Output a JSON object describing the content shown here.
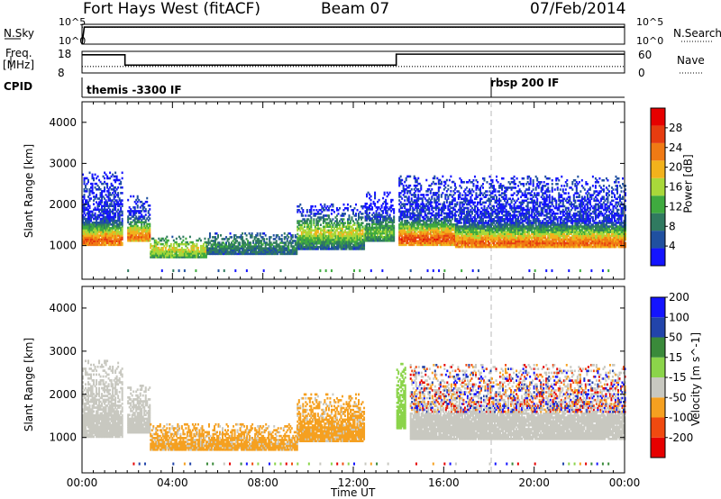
{
  "header": {
    "station": "Fort Hays West (fitACF)",
    "beam": "Beam 07",
    "date": "07/Feb/2014"
  },
  "top_panels": {
    "nsky_label": "N.Sky",
    "nsky_ticks": [
      "10^5",
      "10^0"
    ],
    "nsearch_label": "N.Search",
    "nsearch_ticks": [
      "10^5",
      "10^0"
    ],
    "freq_label": "Freq.",
    "freq_unit": "[MHz]",
    "freq_ticks": [
      "18",
      "8"
    ],
    "nave_label": "Nave",
    "nave_ticks": [
      "60",
      "0"
    ],
    "cpid_label": "CPID",
    "cpid_segments": [
      {
        "start": "00:00",
        "label": "themis -3300 IF"
      },
      {
        "start": "18:05",
        "label": "rbsp 200 IF"
      }
    ]
  },
  "chart_data": [
    {
      "type": "line",
      "name": "nsky-nsearch",
      "x_range_hours": [
        0,
        24
      ],
      "ylim_log": [
        0,
        5
      ],
      "series": [
        {
          "key": "nsky",
          "x": [
            0,
            0.1,
            24
          ],
          "values": [
            0,
            4.3,
            4.3
          ]
        },
        {
          "key": "nsearch",
          "x": [
            0,
            24
          ],
          "values": [
            4.3,
            4.3
          ]
        }
      ]
    },
    {
      "type": "line",
      "name": "freq-nave",
      "x_range_hours": [
        0,
        24
      ],
      "ylim": [
        8,
        18
      ],
      "ylim_right": [
        0,
        60
      ],
      "series": [
        {
          "key": "freq",
          "x": [
            0,
            1.9,
            1.9,
            13.9,
            13.9,
            24
          ],
          "values": [
            16.4,
            16.4,
            11.6,
            11.6,
            16.7,
            16.7
          ]
        },
        {
          "key": "nave",
          "x": [
            0,
            24
          ],
          "values": [
            18,
            18
          ]
        }
      ]
    },
    {
      "type": "heatmap",
      "name": "power",
      "xlabel": "",
      "ylabel": "Slant Range [km]",
      "x_ticks": [
        "00:00",
        "04:00",
        "08:00",
        "12:00",
        "16:00",
        "20:00",
        "00:00"
      ],
      "x_tick_hours": [
        0,
        4,
        8,
        12,
        16,
        20,
        24
      ],
      "y_ticks": [
        1000,
        2000,
        3000,
        4000
      ],
      "ylim": [
        180,
        4500
      ],
      "colorbar": {
        "label": "Power [dB]",
        "ticks": [
          4,
          8,
          12,
          16,
          20,
          24,
          28
        ],
        "colors": [
          "#1414ff",
          "#2050a0",
          "#307a60",
          "#3faa3f",
          "#a9d83a",
          "#f2b21c",
          "#f07a14",
          "#e63c10",
          "#e60000"
        ],
        "range": [
          0,
          32
        ]
      },
      "bands": [
        {
          "t0": 0.0,
          "t1": 1.8,
          "r_low": 1000,
          "r_high": 2800,
          "core": 1100,
          "level": 26
        },
        {
          "t0": 2.0,
          "t1": 3.0,
          "r_low": 1100,
          "r_high": 2200,
          "core": 1200,
          "level": 24
        },
        {
          "t0": 3.0,
          "t1": 5.5,
          "r_low": 700,
          "r_high": 1200,
          "core": 900,
          "level": 18
        },
        {
          "t0": 5.5,
          "t1": 9.5,
          "r_low": 780,
          "r_high": 1300,
          "core": 1000,
          "level": 10
        },
        {
          "t0": 9.5,
          "t1": 12.5,
          "r_low": 900,
          "r_high": 2000,
          "core": 1300,
          "level": 18
        },
        {
          "t0": 12.5,
          "t1": 13.8,
          "r_low": 1100,
          "r_high": 2300,
          "core": 1300,
          "level": 14
        },
        {
          "t0": 14.0,
          "t1": 16.5,
          "r_low": 1000,
          "r_high": 2700,
          "core": 1150,
          "level": 27
        },
        {
          "t0": 16.5,
          "t1": 24.0,
          "r_low": 950,
          "r_high": 2700,
          "core": 1050,
          "level": 25
        }
      ]
    },
    {
      "type": "heatmap",
      "name": "velocity",
      "xlabel": "Time UT",
      "ylabel": "Slant Range [km]",
      "x_ticks": [
        "00:00",
        "04:00",
        "08:00",
        "12:00",
        "16:00",
        "20:00",
        "00:00"
      ],
      "x_tick_hours": [
        0,
        4,
        8,
        12,
        16,
        20,
        24
      ],
      "y_ticks": [
        1000,
        2000,
        3000,
        4000
      ],
      "ylim": [
        180,
        4500
      ],
      "colorbar": {
        "label": "Velocity [m s^-1]",
        "ticks": [
          -200,
          -100,
          -50,
          -15,
          15,
          50,
          100,
          200
        ],
        "colors": [
          "#e60000",
          "#f04a10",
          "#f5a020",
          "#c8c8c0",
          "#8bd44a",
          "#3a8a3a",
          "#2244aa",
          "#1414ff"
        ],
        "range": [
          -250,
          250
        ]
      },
      "bands": [
        {
          "t0": 0.0,
          "t1": 1.8,
          "r_low": 1000,
          "r_high": 2800,
          "class": "ground"
        },
        {
          "t0": 2.0,
          "t1": 3.0,
          "r_low": 1100,
          "r_high": 2200,
          "class": "ground"
        },
        {
          "t0": 3.0,
          "t1": 9.5,
          "r_low": 700,
          "r_high": 1300,
          "class": "negative"
        },
        {
          "t0": 9.5,
          "t1": 12.5,
          "r_low": 900,
          "r_high": 2000,
          "class": "negative"
        },
        {
          "t0": 13.9,
          "t1": 14.3,
          "r_low": 1200,
          "r_high": 2700,
          "class": "positive"
        },
        {
          "t0": 14.5,
          "t1": 24.0,
          "r_low": 950,
          "r_high": 2700,
          "class": "mixed"
        }
      ]
    }
  ]
}
